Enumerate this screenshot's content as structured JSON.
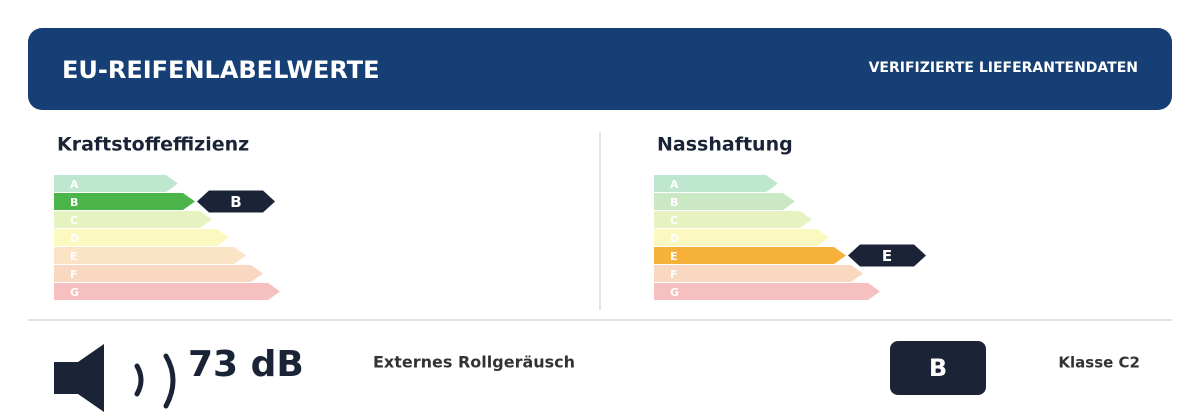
{
  "header": {
    "title": "EU-REIFENLABELWERTE",
    "badge": "VERIFIZIERTE LIEFERANTENDATEN"
  },
  "panels": [
    {
      "heading": "Kraftstoffeffizienz",
      "classes": [
        "A",
        "B",
        "C",
        "D",
        "E",
        "F",
        "G"
      ],
      "selected": "B"
    },
    {
      "heading": "Nasshaftung",
      "classes": [
        "A",
        "B",
        "C",
        "D",
        "E",
        "F",
        "G"
      ],
      "selected": "E"
    }
  ],
  "noise": {
    "value": "73 dB",
    "label": "Externes Rollgeräusch",
    "class": "B",
    "tyre_class": "Klasse C2"
  }
}
